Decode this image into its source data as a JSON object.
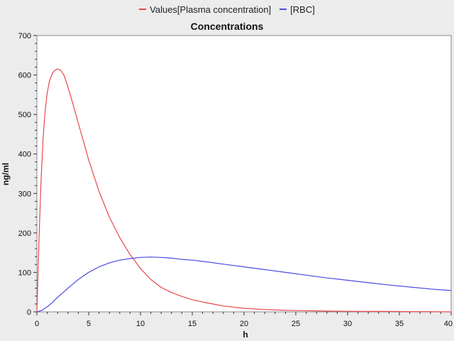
{
  "chart_data": {
    "type": "line",
    "title": "Concentrations",
    "xlabel": "h",
    "ylabel": "ng/ml",
    "xlim": [
      0,
      40
    ],
    "ylim": [
      0,
      700
    ],
    "xticks": [
      0,
      5,
      10,
      15,
      20,
      25,
      30,
      35,
      40
    ],
    "yticks": [
      0,
      100,
      200,
      300,
      400,
      500,
      600,
      700
    ],
    "grid": false,
    "legend_position": "top",
    "series": [
      {
        "name": "Values[Plasma concentration]",
        "color": "#e8474a",
        "x": [
          0,
          0.2,
          0.4,
          0.6,
          0.8,
          1.0,
          1.2,
          1.5,
          1.8,
          2.0,
          2.3,
          2.6,
          3.0,
          3.5,
          4,
          5,
          6,
          7,
          8,
          9,
          10,
          11,
          12,
          13,
          14,
          15,
          16,
          17,
          18,
          19,
          20,
          22,
          24,
          26,
          28,
          30,
          32,
          34,
          36,
          38,
          40
        ],
        "y": [
          0,
          180,
          330,
          440,
          510,
          555,
          583,
          605,
          613,
          615,
          612,
          600,
          570,
          525,
          478,
          385,
          305,
          240,
          188,
          145,
          110,
          82,
          62,
          49,
          39,
          31,
          25,
          20,
          15,
          12,
          9,
          6,
          4,
          3,
          2,
          1.5,
          1,
          1,
          0.5,
          0.5,
          0
        ]
      },
      {
        "name": "[RBC]",
        "color": "#4a4ae0",
        "x": [
          0,
          0.5,
          1,
          1.5,
          2,
          3,
          4,
          5,
          6,
          7,
          8,
          9,
          10,
          11,
          12,
          13,
          14,
          15,
          16,
          18,
          20,
          22,
          24,
          26,
          28,
          30,
          32,
          34,
          36,
          38,
          40
        ],
        "y": [
          0,
          4,
          13,
          24,
          37,
          60,
          82,
          100,
          114,
          124,
          131,
          135,
          138,
          139,
          138,
          136,
          133,
          131,
          128,
          121,
          114,
          107,
          100,
          93,
          86,
          80,
          74,
          68,
          63,
          58,
          54
        ]
      }
    ]
  }
}
